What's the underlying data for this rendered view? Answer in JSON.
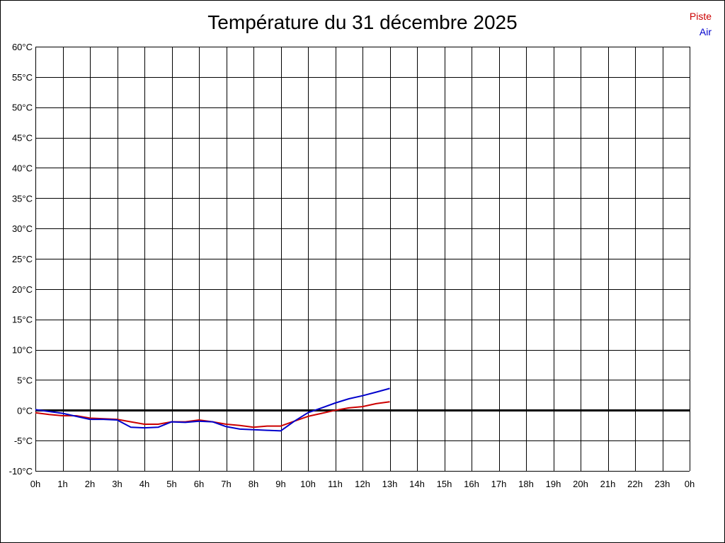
{
  "chart_data": {
    "type": "line",
    "title": "Température du 31 décembre 2025",
    "xlabel": "",
    "ylabel": "",
    "x_tick_labels": [
      "0h",
      "1h",
      "2h",
      "3h",
      "4h",
      "5h",
      "6h",
      "7h",
      "8h",
      "9h",
      "10h",
      "11h",
      "12h",
      "13h",
      "14h",
      "15h",
      "16h",
      "17h",
      "18h",
      "19h",
      "20h",
      "21h",
      "22h",
      "23h",
      "0h"
    ],
    "y_tick_labels": [
      "60°C",
      "55°C",
      "50°C",
      "45°C",
      "40°C",
      "35°C",
      "30°C",
      "25°C",
      "20°C",
      "15°C",
      "10°C",
      "5°C",
      "0°C",
      "-5°C",
      "-10°C"
    ],
    "xlim": [
      0,
      24
    ],
    "ylim": [
      -10,
      60
    ],
    "y_step": 5,
    "grid": true,
    "zero_line": true,
    "legend_position": "top-right",
    "series": [
      {
        "name": "Piste",
        "color": "#cc0000",
        "x": [
          0,
          0.5,
          1,
          1.5,
          2,
          2.5,
          3,
          3.5,
          4,
          4.5,
          5,
          5.5,
          6,
          6.5,
          7,
          7.5,
          8,
          8.5,
          9,
          9.5,
          10,
          10.5,
          11,
          11.5,
          12,
          12.5,
          13
        ],
        "values": [
          -0.4,
          -0.7,
          -0.9,
          -0.9,
          -1.3,
          -1.4,
          -1.5,
          -1.9,
          -2.3,
          -2.3,
          -1.9,
          -1.9,
          -1.6,
          -1.9,
          -2.3,
          -2.5,
          -2.8,
          -2.6,
          -2.6,
          -1.8,
          -1.0,
          -0.5,
          0.0,
          0.4,
          0.6,
          1.1,
          1.4
        ]
      },
      {
        "name": "Air",
        "color": "#0000cc",
        "x": [
          0,
          0.5,
          1,
          1.5,
          2,
          2.5,
          3,
          3.5,
          4,
          4.5,
          5,
          5.5,
          6,
          6.5,
          7,
          7.5,
          8,
          8.5,
          9,
          9.5,
          10,
          10.5,
          11,
          11.5,
          12,
          12.5,
          13
        ],
        "values": [
          0.1,
          -0.2,
          -0.5,
          -1.0,
          -1.5,
          -1.5,
          -1.6,
          -2.8,
          -2.9,
          -2.8,
          -1.9,
          -2.0,
          -1.8,
          -1.9,
          -2.7,
          -3.1,
          -3.2,
          -3.3,
          -3.4,
          -1.8,
          -0.4,
          0.4,
          1.2,
          1.9,
          2.4,
          3.0,
          3.6
        ]
      }
    ]
  }
}
